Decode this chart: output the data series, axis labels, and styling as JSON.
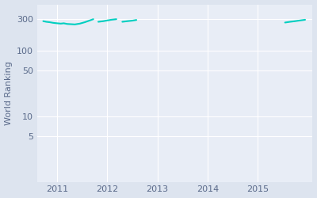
{
  "ylabel": "World Ranking",
  "background_color": "#dde4ef",
  "plot_bg_color": "#e8edf6",
  "line_color": "#00cfc0",
  "line_width": 1.5,
  "xlim": [
    2010.6,
    2016.1
  ],
  "ylim_log": [
    1,
    500
  ],
  "yticks": [
    5,
    10,
    50,
    100,
    300
  ],
  "xticks": [
    2011,
    2012,
    2013,
    2014,
    2015
  ],
  "segments": [
    {
      "x": [
        2010.72,
        2010.78,
        2010.85,
        2010.92,
        2011.0,
        2011.07,
        2011.13,
        2011.2,
        2011.28,
        2011.35,
        2011.45,
        2011.55,
        2011.65,
        2011.72
      ],
      "y": [
        278,
        272,
        268,
        262,
        258,
        255,
        258,
        252,
        250,
        248,
        255,
        268,
        285,
        298
      ]
    },
    {
      "x": [
        2011.82,
        2011.92,
        2012.0,
        2012.08,
        2012.18
      ],
      "y": [
        272,
        278,
        285,
        292,
        298
      ]
    },
    {
      "x": [
        2012.3,
        2012.4,
        2012.5,
        2012.58
      ],
      "y": [
        272,
        278,
        283,
        290
      ]
    },
    {
      "x": [
        2015.55,
        2015.65,
        2015.75,
        2015.85,
        2015.95
      ],
      "y": [
        265,
        272,
        278,
        285,
        292
      ]
    }
  ]
}
